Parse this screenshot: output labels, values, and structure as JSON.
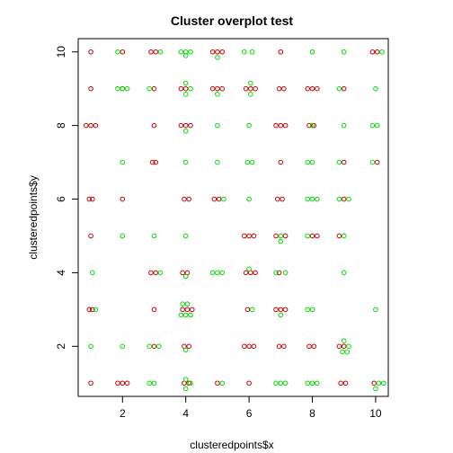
{
  "chart_data": {
    "type": "scatter",
    "title": "Cluster overplot test",
    "xlabel": "clusteredpoints$x",
    "ylabel": "clusteredpoints$y",
    "xlim": [
      0.6,
      10.4
    ],
    "ylim": [
      0.64,
      10.36
    ],
    "xticks": [
      2,
      4,
      6,
      8,
      10
    ],
    "yticks": [
      2,
      4,
      6,
      8,
      10
    ],
    "grid": false,
    "legend": "none",
    "colors": {
      "red": "#cc0000",
      "green": "#00dd00",
      "axis": "#000000"
    },
    "series": [
      {
        "color": "red",
        "points": [
          [
            1.0,
            10
          ],
          [
            1.0,
            9
          ],
          [
            0.85,
            8
          ],
          [
            1.0,
            8
          ],
          [
            1.15,
            8
          ],
          [
            0.95,
            6
          ],
          [
            1.05,
            6
          ],
          [
            1.0,
            5
          ],
          [
            0.95,
            3
          ],
          [
            1.05,
            3
          ],
          [
            1.0,
            1
          ],
          [
            2.0,
            10
          ],
          [
            2.0,
            9
          ],
          [
            2.0,
            6
          ],
          [
            1.85,
            1
          ],
          [
            2.0,
            1
          ],
          [
            2.15,
            1
          ],
          [
            2.9,
            10
          ],
          [
            3.05,
            10
          ],
          [
            3.0,
            9
          ],
          [
            3.0,
            8
          ],
          [
            2.95,
            7
          ],
          [
            3.05,
            7
          ],
          [
            2.9,
            4
          ],
          [
            3.05,
            4
          ],
          [
            3.0,
            3
          ],
          [
            3.0,
            2
          ],
          [
            3.85,
            9
          ],
          [
            4.0,
            9
          ],
          [
            3.85,
            8
          ],
          [
            4.0,
            8
          ],
          [
            4.15,
            8
          ],
          [
            3.95,
            6
          ],
          [
            4.1,
            6
          ],
          [
            3.9,
            4
          ],
          [
            4.05,
            4
          ],
          [
            3.9,
            3
          ],
          [
            4.05,
            3
          ],
          [
            4.2,
            3
          ],
          [
            3.95,
            2
          ],
          [
            4.1,
            2
          ],
          [
            3.95,
            1
          ],
          [
            4.1,
            1
          ],
          [
            4.85,
            10
          ],
          [
            5.0,
            10
          ],
          [
            5.15,
            10
          ],
          [
            4.85,
            9
          ],
          [
            5.0,
            9
          ],
          [
            5.15,
            9
          ],
          [
            4.9,
            6
          ],
          [
            5.05,
            6
          ],
          [
            5.0,
            1
          ],
          [
            5.9,
            9
          ],
          [
            6.05,
            9
          ],
          [
            6.2,
            9
          ],
          [
            5.85,
            5
          ],
          [
            6.0,
            5
          ],
          [
            6.15,
            5
          ],
          [
            5.9,
            4
          ],
          [
            6.05,
            4
          ],
          [
            6.2,
            4
          ],
          [
            5.95,
            3
          ],
          [
            5.85,
            2
          ],
          [
            6.0,
            2
          ],
          [
            6.15,
            2
          ],
          [
            6.0,
            1
          ],
          [
            7.0,
            10
          ],
          [
            6.95,
            9
          ],
          [
            7.1,
            9
          ],
          [
            6.85,
            8
          ],
          [
            7.0,
            8
          ],
          [
            7.15,
            8
          ],
          [
            7.0,
            7
          ],
          [
            6.9,
            6
          ],
          [
            7.05,
            6
          ],
          [
            6.85,
            5
          ],
          [
            7.15,
            5
          ],
          [
            6.95,
            4
          ],
          [
            6.85,
            3
          ],
          [
            7.0,
            3
          ],
          [
            7.15,
            3
          ],
          [
            6.95,
            2
          ],
          [
            7.1,
            2
          ],
          [
            7.85,
            9
          ],
          [
            8.0,
            9
          ],
          [
            8.15,
            9
          ],
          [
            7.9,
            8
          ],
          [
            8.05,
            8
          ],
          [
            8.0,
            5
          ],
          [
            8.15,
            5
          ],
          [
            7.9,
            2
          ],
          [
            8.05,
            2
          ],
          [
            9.0,
            9
          ],
          [
            9.0,
            7
          ],
          [
            9.0,
            6
          ],
          [
            8.85,
            5
          ],
          [
            8.85,
            2
          ],
          [
            9.0,
            2
          ],
          [
            8.9,
            1
          ],
          [
            9.05,
            1
          ],
          [
            9.9,
            10
          ],
          [
            10.05,
            10
          ],
          [
            10.05,
            7
          ],
          [
            9.95,
            1
          ]
        ]
      },
      {
        "color": "green",
        "points": [
          [
            1.15,
            3
          ],
          [
            1.0,
            2
          ],
          [
            1.05,
            4
          ],
          [
            1.85,
            10
          ],
          [
            1.85,
            9
          ],
          [
            2.0,
            9
          ],
          [
            2.15,
            9
          ],
          [
            2.0,
            7
          ],
          [
            2.0,
            5
          ],
          [
            2.0,
            2
          ],
          [
            3.2,
            10
          ],
          [
            2.85,
            9
          ],
          [
            3.0,
            5
          ],
          [
            3.2,
            4
          ],
          [
            2.85,
            2
          ],
          [
            3.15,
            2
          ],
          [
            2.85,
            1
          ],
          [
            3.0,
            1
          ],
          [
            3.85,
            10
          ],
          [
            4.0,
            10
          ],
          [
            4.15,
            10
          ],
          [
            4.0,
            9.9
          ],
          [
            4.0,
            9.15
          ],
          [
            4.0,
            8.85
          ],
          [
            4.15,
            9
          ],
          [
            4.0,
            7.85
          ],
          [
            4.0,
            7
          ],
          [
            4.0,
            5
          ],
          [
            4.0,
            3.9
          ],
          [
            3.9,
            3.15
          ],
          [
            4.05,
            3.15
          ],
          [
            3.85,
            2.85
          ],
          [
            4.0,
            2.85
          ],
          [
            4.15,
            2.85
          ],
          [
            4.0,
            1.9
          ],
          [
            4.0,
            1.1
          ],
          [
            4.0,
            0.85
          ],
          [
            4.15,
            1
          ],
          [
            5.0,
            9.85
          ],
          [
            5.0,
            8.85
          ],
          [
            4.85,
            4
          ],
          [
            5.0,
            4
          ],
          [
            5.15,
            4
          ],
          [
            5.0,
            8
          ],
          [
            5.0,
            7
          ],
          [
            5.2,
            6
          ],
          [
            5.15,
            1
          ],
          [
            5.85,
            10
          ],
          [
            6.1,
            10
          ],
          [
            6.05,
            9.15
          ],
          [
            6.05,
            8.85
          ],
          [
            6.0,
            8
          ],
          [
            5.95,
            7
          ],
          [
            6.1,
            7
          ],
          [
            6.0,
            6
          ],
          [
            6.1,
            3
          ],
          [
            6.0,
            4.1
          ],
          [
            7.0,
            4.85
          ],
          [
            7.15,
            4
          ],
          [
            7.0,
            2.85
          ],
          [
            6.85,
            1
          ],
          [
            7.0,
            1
          ],
          [
            7.15,
            1
          ],
          [
            7.0,
            5
          ],
          [
            6.85,
            4
          ],
          [
            8.0,
            10
          ],
          [
            8.0,
            8
          ],
          [
            7.85,
            7
          ],
          [
            8.0,
            7
          ],
          [
            7.85,
            6
          ],
          [
            8.0,
            6
          ],
          [
            8.15,
            6
          ],
          [
            7.85,
            5
          ],
          [
            7.85,
            3
          ],
          [
            8.0,
            3
          ],
          [
            7.85,
            1
          ],
          [
            8.0,
            1
          ],
          [
            8.15,
            1
          ],
          [
            9.0,
            10
          ],
          [
            8.85,
            9
          ],
          [
            9.0,
            8
          ],
          [
            8.85,
            7
          ],
          [
            8.85,
            6
          ],
          [
            9.15,
            6
          ],
          [
            9.0,
            5
          ],
          [
            9.0,
            4
          ],
          [
            9.0,
            2.15
          ],
          [
            8.95,
            1.85
          ],
          [
            9.1,
            1.85
          ],
          [
            9.15,
            2
          ],
          [
            10.2,
            10
          ],
          [
            10.0,
            9
          ],
          [
            9.9,
            8
          ],
          [
            10.05,
            8
          ],
          [
            9.9,
            7
          ],
          [
            10.0,
            3
          ],
          [
            10.1,
            1
          ],
          [
            10.0,
            0.85
          ],
          [
            10.25,
            1
          ]
        ]
      }
    ]
  }
}
